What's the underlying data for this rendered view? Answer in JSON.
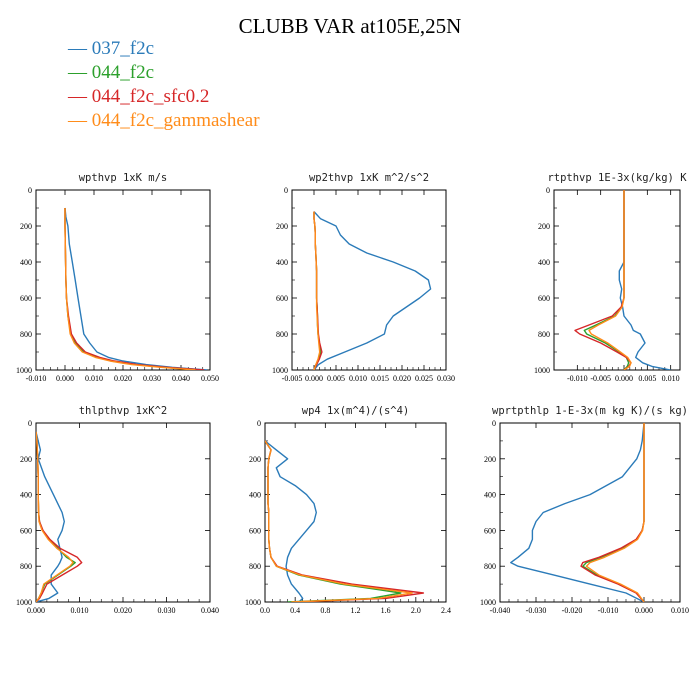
{
  "page": {
    "title": "CLUBB VAR at105E,25N",
    "legend": [
      {
        "label": "037_f2c",
        "color": "#2b7bb9"
      },
      {
        "label": "044_f2c",
        "color": "#2ca02c"
      },
      {
        "label": "044_f2c_sfc0.2",
        "color": "#d62728"
      },
      {
        "label": "044_f2c_gammashear",
        "color": "#ff8c1a"
      }
    ]
  },
  "chart_data": [
    {
      "type": "line",
      "title": "wpthvp  1xK m/s",
      "xlim": [
        -0.01,
        0.05
      ],
      "ylim": [
        1000,
        0
      ],
      "xticks": [
        -0.01,
        0.0,
        0.01,
        0.02,
        0.03,
        0.04,
        0.05
      ],
      "xtick_labels": [
        "-0.010",
        "0.000",
        "0.010",
        "0.020",
        "0.030",
        "0.040",
        "0.050"
      ],
      "yticks": [
        0,
        200,
        400,
        600,
        800,
        1000
      ],
      "ytick_labels": [
        "0",
        "200",
        "400",
        "600",
        "800",
        "1000"
      ],
      "y": [
        100,
        150,
        200,
        300,
        400,
        500,
        600,
        700,
        800,
        850,
        900,
        930,
        950,
        970,
        985,
        1000
      ],
      "series": [
        {
          "name": "037_f2c",
          "color": "#2b7bb9",
          "values": [
            0.0,
            0.0003,
            0.001,
            0.0015,
            0.0025,
            0.0035,
            0.0045,
            0.0055,
            0.0065,
            0.0085,
            0.011,
            0.015,
            0.02,
            0.028,
            0.037,
            0.049
          ]
        },
        {
          "name": "044_f2c",
          "color": "#2ca02c",
          "values": [
            0.0,
            0.0,
            0.0,
            0.0001,
            0.0002,
            0.0003,
            0.0005,
            0.001,
            0.002,
            0.0035,
            0.0065,
            0.011,
            0.016,
            0.024,
            0.034,
            0.046
          ]
        },
        {
          "name": "044_f2c_sfc0.2",
          "color": "#d62728",
          "values": [
            0.0,
            0.0,
            0.0,
            0.0001,
            0.0002,
            0.0003,
            0.0005,
            0.0012,
            0.0022,
            0.004,
            0.007,
            0.012,
            0.017,
            0.025,
            0.035,
            0.048
          ]
        },
        {
          "name": "044_f2c_gammashear",
          "color": "#ff8c1a",
          "values": [
            0.0,
            0.0,
            0.0,
            0.0001,
            0.0002,
            0.0003,
            0.0005,
            0.001,
            0.0018,
            0.0032,
            0.006,
            0.0105,
            0.0155,
            0.023,
            0.033,
            0.045
          ]
        }
      ]
    },
    {
      "type": "line",
      "title": "wp2thvp  1xK m^2/s^2",
      "xlim": [
        -0.005,
        0.03
      ],
      "ylim": [
        1000,
        0
      ],
      "xticks": [
        -0.005,
        0.0,
        0.005,
        0.01,
        0.015,
        0.02,
        0.025,
        0.03
      ],
      "xtick_labels": [
        "-0.005",
        "0.000",
        "0.005",
        "0.010",
        "0.015",
        "0.020",
        "0.025",
        "0.030"
      ],
      "yticks": [
        0,
        200,
        400,
        600,
        800,
        1000
      ],
      "ytick_labels": [
        "0",
        "200",
        "400",
        "600",
        "800",
        "1000"
      ],
      "y": [
        120,
        160,
        200,
        250,
        300,
        350,
        400,
        450,
        500,
        550,
        600,
        650,
        700,
        750,
        800,
        850,
        900,
        940,
        970,
        1000
      ],
      "series": [
        {
          "name": "037_f2c",
          "color": "#2b7bb9",
          "values": [
            0.0,
            0.0015,
            0.005,
            0.006,
            0.008,
            0.012,
            0.018,
            0.023,
            0.026,
            0.0265,
            0.024,
            0.021,
            0.018,
            0.0165,
            0.016,
            0.012,
            0.007,
            0.003,
            0.001,
            0.0
          ]
        },
        {
          "name": "044_f2c",
          "color": "#2ca02c",
          "values": [
            0.0,
            0.0,
            0.0002,
            0.0003,
            0.0003,
            0.0004,
            0.0005,
            0.0006,
            0.0006,
            0.0006,
            0.0006,
            0.0007,
            0.0008,
            0.0008,
            0.0009,
            0.0012,
            0.0015,
            0.001,
            0.0005,
            0.0
          ]
        },
        {
          "name": "044_f2c_sfc0.2",
          "color": "#d62728",
          "values": [
            0.0,
            0.0,
            0.0002,
            0.0003,
            0.0003,
            0.0004,
            0.0005,
            0.0006,
            0.0006,
            0.0006,
            0.0006,
            0.0007,
            0.0008,
            0.0009,
            0.001,
            0.0013,
            0.0018,
            0.0012,
            0.0006,
            0.0
          ]
        },
        {
          "name": "044_f2c_gammashear",
          "color": "#ff8c1a",
          "values": [
            0.0,
            0.0,
            0.0002,
            0.0003,
            0.0003,
            0.0004,
            0.0005,
            0.0006,
            0.0006,
            0.0006,
            0.0006,
            0.0006,
            0.0007,
            0.0008,
            0.0009,
            0.0011,
            0.0013,
            0.0009,
            0.0004,
            0.0
          ]
        }
      ]
    },
    {
      "type": "line",
      "title": "rtpthvp  1E-3x(kg/kg) K",
      "xlim": [
        -0.015,
        0.012
      ],
      "ylim": [
        1000,
        0
      ],
      "xticks": [
        -0.01,
        -0.005,
        0.0,
        0.005,
        0.01
      ],
      "xtick_labels": [
        "-0.010",
        "-0.005",
        "0.000",
        "0.005",
        "0.010"
      ],
      "yticks": [
        0,
        200,
        400,
        600,
        800,
        1000
      ],
      "ytick_labels": [
        "0",
        "200",
        "400",
        "600",
        "800",
        "1000"
      ],
      "y": [
        0,
        200,
        400,
        450,
        500,
        550,
        600,
        650,
        700,
        750,
        780,
        800,
        850,
        900,
        930,
        960,
        980,
        1000
      ],
      "series": [
        {
          "name": "037_f2c",
          "color": "#2b7bb9",
          "values": [
            0.0,
            0.0,
            0.0,
            -0.001,
            -0.001,
            -0.0005,
            -0.0008,
            -0.0003,
            0.0,
            0.0015,
            0.002,
            0.0035,
            0.0045,
            0.003,
            0.0025,
            0.004,
            0.006,
            0.01
          ]
        },
        {
          "name": "044_f2c",
          "color": "#2ca02c",
          "values": [
            0.0,
            0.0,
            0.0,
            0.0,
            0.0,
            0.0,
            0.0,
            -0.0005,
            -0.002,
            -0.006,
            -0.0085,
            -0.008,
            -0.004,
            -0.001,
            0.0005,
            0.001,
            0.0007,
            0.0
          ]
        },
        {
          "name": "044_f2c_sfc0.2",
          "color": "#d62728",
          "values": [
            0.0,
            0.0,
            0.0,
            0.0,
            0.0,
            0.0,
            0.0,
            -0.0006,
            -0.0025,
            -0.0075,
            -0.0105,
            -0.0095,
            -0.005,
            -0.0015,
            0.0005,
            0.0015,
            0.001,
            0.0
          ]
        },
        {
          "name": "044_f2c_gammashear",
          "color": "#ff8c1a",
          "values": [
            0.0,
            0.0,
            0.0,
            0.0,
            0.0,
            0.0,
            0.0,
            -0.0004,
            -0.0018,
            -0.0055,
            -0.0075,
            -0.007,
            -0.0035,
            -0.0008,
            0.0008,
            0.0015,
            0.0012,
            0.0
          ]
        }
      ]
    },
    {
      "type": "line",
      "title": "thlpthvp  1xK^2",
      "xlim": [
        0.0,
        0.04
      ],
      "ylim": [
        1000,
        0
      ],
      "xticks": [
        0.0,
        0.01,
        0.02,
        0.03,
        0.04
      ],
      "xtick_labels": [
        "0.000",
        "0.010",
        "0.020",
        "0.030",
        "0.040"
      ],
      "yticks": [
        0,
        200,
        400,
        600,
        800,
        1000
      ],
      "ytick_labels": [
        "0",
        "200",
        "400",
        "600",
        "800",
        "1000"
      ],
      "y": [
        50,
        100,
        150,
        200,
        300,
        400,
        500,
        550,
        600,
        650,
        700,
        750,
        780,
        800,
        850,
        900,
        950,
        980,
        1000
      ],
      "series": [
        {
          "name": "037_f2c",
          "color": "#2b7bb9",
          "values": [
            0.0,
            0.0005,
            0.001,
            0.0005,
            0.002,
            0.004,
            0.006,
            0.0065,
            0.006,
            0.005,
            0.0055,
            0.006,
            0.0055,
            0.005,
            0.0035,
            0.0035,
            0.005,
            0.003,
            0.0
          ]
        },
        {
          "name": "044_f2c",
          "color": "#2ca02c",
          "values": [
            0.0,
            0.0002,
            0.0003,
            0.0004,
            0.0005,
            0.0005,
            0.0006,
            0.0008,
            0.0015,
            0.003,
            0.005,
            0.007,
            0.009,
            0.008,
            0.005,
            0.002,
            0.0012,
            0.0006,
            0.0
          ]
        },
        {
          "name": "044_f2c_sfc0.2",
          "color": "#d62728",
          "values": [
            0.0,
            0.0002,
            0.0003,
            0.0004,
            0.0005,
            0.0005,
            0.0006,
            0.0008,
            0.0016,
            0.0032,
            0.0055,
            0.0095,
            0.0105,
            0.0095,
            0.006,
            0.0025,
            0.0015,
            0.0008,
            0.0
          ]
        },
        {
          "name": "044_f2c_gammashear",
          "color": "#ff8c1a",
          "values": [
            0.0,
            0.0002,
            0.0003,
            0.0004,
            0.0005,
            0.0005,
            0.0006,
            0.0007,
            0.0014,
            0.0028,
            0.0048,
            0.0075,
            0.0085,
            0.0078,
            0.0048,
            0.0018,
            0.0012,
            0.0006,
            0.0
          ]
        }
      ]
    },
    {
      "type": "line",
      "title": "wp4  1x(m^4)/(s^4)",
      "xlim": [
        0.0,
        2.4
      ],
      "ylim": [
        1000,
        0
      ],
      "xticks": [
        0.0,
        0.4,
        0.8,
        1.2,
        1.6,
        2.0,
        2.4
      ],
      "xtick_labels": [
        "0.0",
        "0.4",
        "0.8",
        "1.2",
        "1.6",
        "2.0",
        "2.4"
      ],
      "yticks": [
        0,
        200,
        400,
        600,
        800,
        1000
      ],
      "ytick_labels": [
        "0",
        "200",
        "400",
        "600",
        "800",
        "1000"
      ],
      "y": [
        100,
        150,
        200,
        250,
        300,
        350,
        400,
        450,
        500,
        550,
        600,
        650,
        700,
        750,
        800,
        850,
        900,
        950,
        980,
        1000
      ],
      "series": [
        {
          "name": "037_f2c",
          "color": "#2b7bb9",
          "values": [
            0.0,
            0.15,
            0.3,
            0.15,
            0.2,
            0.4,
            0.55,
            0.65,
            0.68,
            0.65,
            0.55,
            0.45,
            0.35,
            0.3,
            0.28,
            0.3,
            0.35,
            0.45,
            0.5,
            0.45
          ]
        },
        {
          "name": "044_f2c",
          "color": "#2ca02c",
          "values": [
            0.0,
            0.08,
            0.05,
            0.04,
            0.04,
            0.04,
            0.04,
            0.04,
            0.05,
            0.05,
            0.05,
            0.05,
            0.06,
            0.08,
            0.15,
            0.45,
            1.0,
            1.8,
            1.4,
            0.3
          ]
        },
        {
          "name": "044_f2c_sfc0.2",
          "color": "#d62728",
          "values": [
            0.0,
            0.08,
            0.05,
            0.04,
            0.04,
            0.04,
            0.04,
            0.04,
            0.05,
            0.05,
            0.05,
            0.05,
            0.06,
            0.08,
            0.16,
            0.5,
            1.15,
            2.1,
            1.6,
            0.4
          ]
        },
        {
          "name": "044_f2c_gammashear",
          "color": "#ff8c1a",
          "values": [
            0.0,
            0.08,
            0.05,
            0.04,
            0.04,
            0.04,
            0.04,
            0.04,
            0.05,
            0.05,
            0.05,
            0.05,
            0.06,
            0.08,
            0.15,
            0.47,
            1.05,
            1.95,
            1.5,
            0.35
          ]
        }
      ]
    },
    {
      "type": "line",
      "title": "wprtpthlp  1-E-3x(m kg K)/(s kg)",
      "xlim": [
        -0.04,
        0.01
      ],
      "ylim": [
        1000,
        0
      ],
      "xticks": [
        -0.04,
        -0.03,
        -0.02,
        -0.01,
        0.0,
        0.01
      ],
      "xtick_labels": [
        "-0.040",
        "-0.030",
        "-0.020",
        "-0.010",
        "0.000",
        "0.010"
      ],
      "yticks": [
        0,
        200,
        400,
        600,
        800,
        1000
      ],
      "ytick_labels": [
        "0",
        "200",
        "400",
        "600",
        "800",
        "1000"
      ],
      "y": [
        0,
        100,
        150,
        200,
        300,
        400,
        450,
        500,
        550,
        600,
        650,
        700,
        750,
        780,
        800,
        850,
        900,
        950,
        1000
      ],
      "series": [
        {
          "name": "037_f2c",
          "color": "#2b7bb9",
          "values": [
            0.0,
            -0.0005,
            -0.001,
            -0.002,
            -0.006,
            -0.015,
            -0.022,
            -0.028,
            -0.03,
            -0.031,
            -0.031,
            -0.032,
            -0.035,
            -0.037,
            -0.035,
            -0.025,
            -0.015,
            -0.005,
            0.0
          ]
        },
        {
          "name": "044_f2c",
          "color": "#2ca02c",
          "values": [
            0.0,
            0.0,
            0.0,
            0.0,
            0.0,
            0.0,
            0.0,
            0.0,
            0.0,
            -0.0005,
            -0.002,
            -0.006,
            -0.012,
            -0.016,
            -0.017,
            -0.013,
            -0.007,
            -0.002,
            0.0
          ]
        },
        {
          "name": "044_f2c_sfc0.2",
          "color": "#d62728",
          "values": [
            0.0,
            0.0,
            0.0,
            0.0,
            0.0,
            0.0,
            0.0,
            0.0,
            0.0,
            -0.0005,
            -0.0022,
            -0.0065,
            -0.0125,
            -0.017,
            -0.0175,
            -0.0135,
            -0.0072,
            -0.0022,
            0.0
          ]
        },
        {
          "name": "044_f2c_gammashear",
          "color": "#ff8c1a",
          "values": [
            0.0,
            0.0,
            0.0,
            0.0,
            0.0,
            0.0,
            0.0,
            0.0,
            0.0,
            -0.0004,
            -0.0018,
            -0.0055,
            -0.011,
            -0.015,
            -0.016,
            -0.0125,
            -0.0065,
            -0.0018,
            0.0
          ]
        }
      ]
    }
  ]
}
